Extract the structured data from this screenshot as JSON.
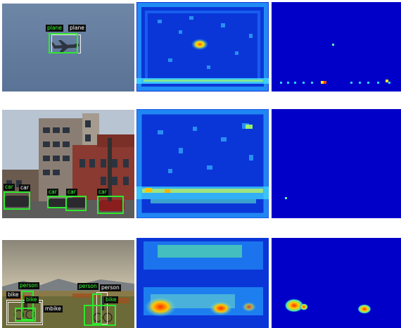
{
  "rows": [
    {
      "id": "plane",
      "gt_labels": [
        "plane"
      ],
      "pred_labels": [
        "plane"
      ]
    },
    {
      "id": "street",
      "gt_labels": [
        "car",
        "car",
        "car",
        "car"
      ],
      "pred_labels": [
        "car"
      ]
    },
    {
      "id": "field",
      "gt_labels": [
        "person",
        "bike",
        "person"
      ],
      "pred_labels": [
        "bike",
        "person",
        "mbike"
      ]
    }
  ],
  "colors": {
    "ground_truth_box": "#2ee82e",
    "prediction_box": "#f0f0f0",
    "heatmap_background": "#0000c8"
  }
}
